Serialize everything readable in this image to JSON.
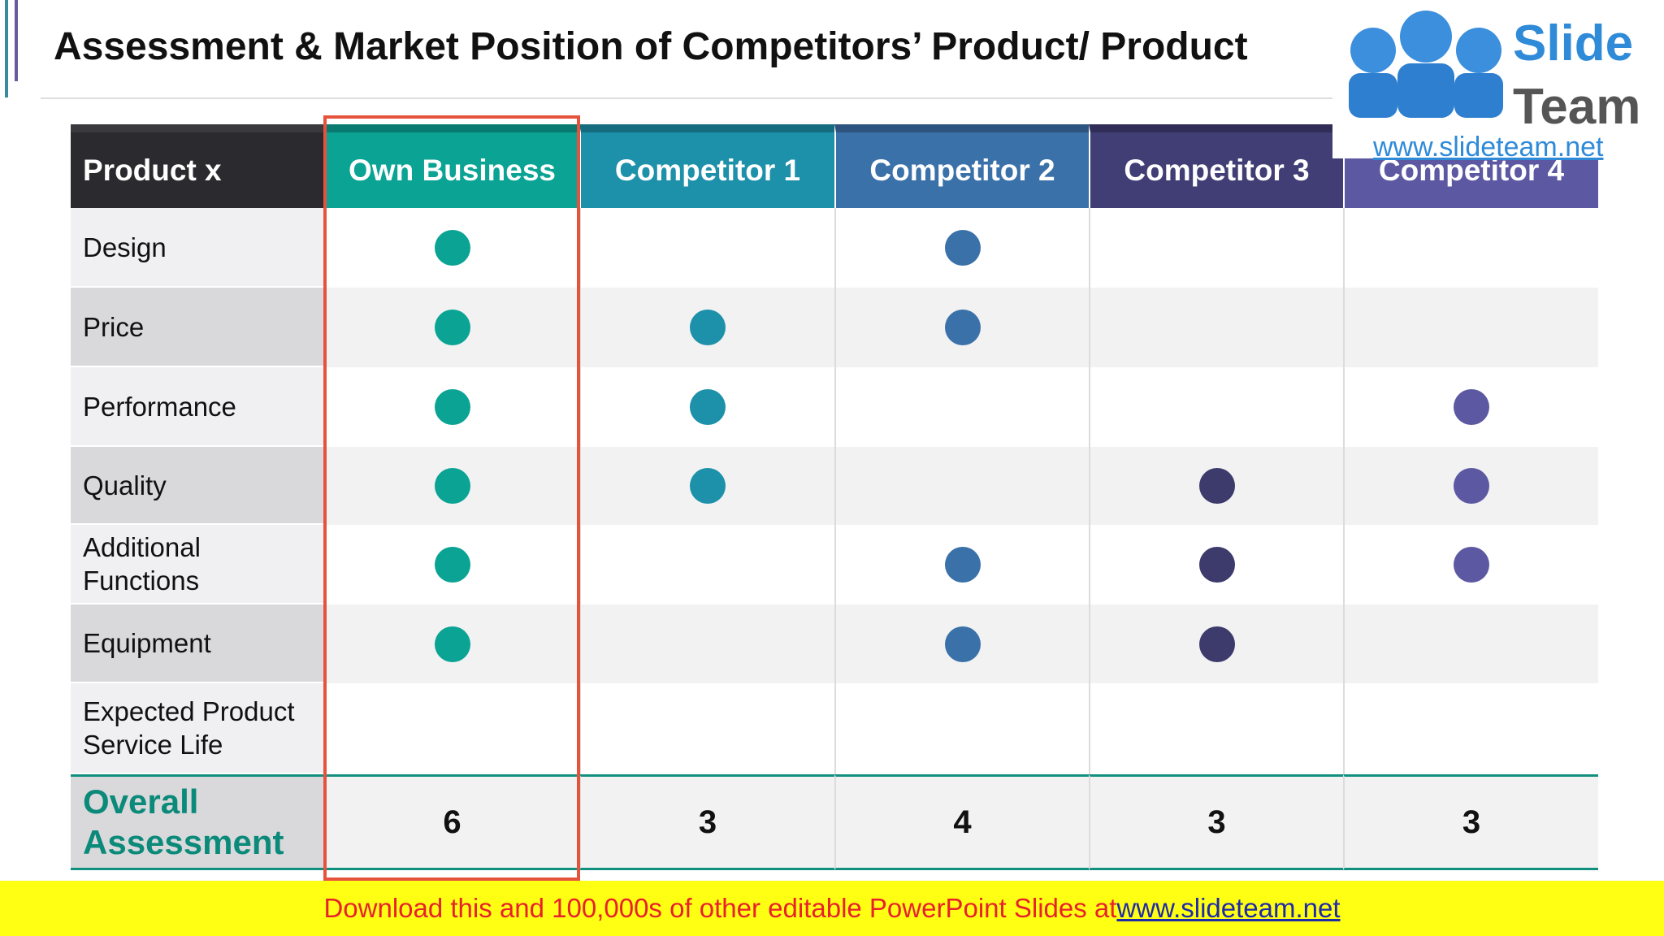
{
  "header": {
    "title": "Assessment & Market Position of Competitors’ Product/ Product"
  },
  "logo": {
    "word1": "Slide",
    "word2": "Team",
    "url": "www.slideteam.net"
  },
  "table": {
    "corner": "Product x",
    "columns": [
      {
        "name": "Own Business",
        "color": "#0ba394",
        "dot": "#0ba394"
      },
      {
        "name": "Competitor 1",
        "color": "#1d90aa",
        "dot": "#1d90aa"
      },
      {
        "name": "Competitor 2",
        "color": "#3b71a9",
        "dot": "#3b71a9"
      },
      {
        "name": "Competitor 3",
        "color": "#403e74",
        "dot": "#3d3b6c"
      },
      {
        "name": "Competitor 4",
        "color": "#5c58a2",
        "dot": "#5c58a2"
      }
    ],
    "rows": [
      {
        "label": "Design",
        "marks": [
          true,
          false,
          true,
          false,
          false
        ]
      },
      {
        "label": "Price",
        "marks": [
          true,
          true,
          true,
          false,
          false
        ]
      },
      {
        "label": "Performance",
        "marks": [
          true,
          true,
          false,
          false,
          true
        ]
      },
      {
        "label": "Quality",
        "marks": [
          true,
          true,
          false,
          true,
          true
        ]
      },
      {
        "label": "Additional Functions",
        "marks": [
          true,
          false,
          true,
          true,
          true
        ]
      },
      {
        "label": "Equipment",
        "marks": [
          true,
          false,
          true,
          true,
          false
        ]
      },
      {
        "label": "Expected Product Service Life",
        "marks": [
          false,
          false,
          false,
          false,
          false
        ]
      }
    ],
    "total": {
      "label": "Overall Assessment",
      "values": [
        "6",
        "3",
        "4",
        "3",
        "3"
      ]
    }
  },
  "footer": {
    "text": "Download this and 100,000s of other editable PowerPoint Slides at ",
    "link": "www.slideteam.net"
  }
}
